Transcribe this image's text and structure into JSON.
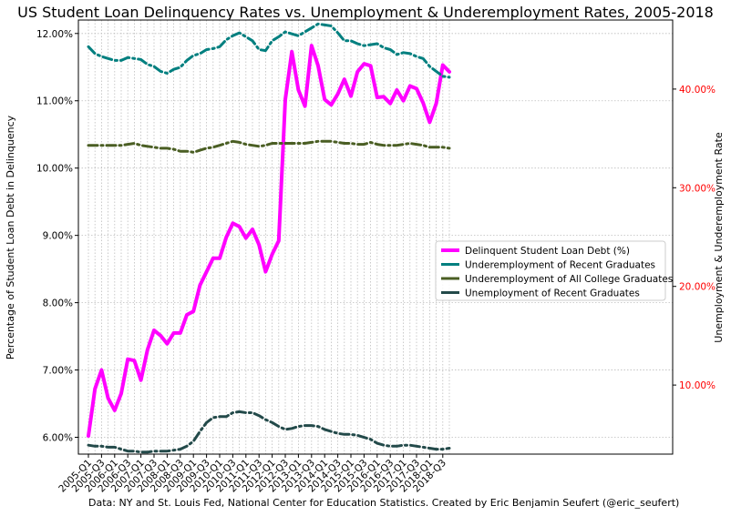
{
  "chart_data": {
    "type": "line",
    "title": "US Student Loan Delinquency Rates vs. Unemployment & Underemployment Rates, 2005-2018",
    "ylabel": "Percentage of Student Loan Debt in Delinquency",
    "y2label": "Unemployment & Underemployment Rate",
    "footer": "Data: NY and St. Louis Fed, National Center for Education Statistics. Created by Eric Benjamin Seufert (@eric_seufert)",
    "grid": true,
    "legend_position": "center-right",
    "ylim": [
      5.75,
      12.2
    ],
    "y2lim": [
      3.0,
      47.0
    ],
    "y_ticks": [
      "6.00%",
      "7.00%",
      "8.00%",
      "9.00%",
      "10.00%",
      "11.00%",
      "12.00%"
    ],
    "y_tick_values": [
      6,
      7,
      8,
      9,
      10,
      11,
      12
    ],
    "y2_ticks": [
      "10.00%",
      "20.00%",
      "30.00%",
      "40.00%"
    ],
    "y2_tick_values": [
      10,
      20,
      30,
      40
    ],
    "x_tick_labels": [
      "2005-Q1",
      "2005-Q3",
      "2006-Q1",
      "2006-Q3",
      "2007-Q1",
      "2007-Q3",
      "2008-Q1",
      "2008-Q3",
      "2009-Q1",
      "2009-Q3",
      "2010-Q1",
      "2010-Q3",
      "2011-Q1",
      "2011-Q3",
      "2012-Q1",
      "2012-Q3",
      "2013-Q1",
      "2013-Q3",
      "2014-Q1",
      "2014-Q3",
      "2015-Q1",
      "2015-Q3",
      "2016-Q1",
      "2016-Q3",
      "2017-Q1",
      "2017-Q3",
      "2018-Q1",
      "2018-Q3"
    ],
    "categories": [
      "2005-Q1",
      "2005-Q2",
      "2005-Q3",
      "2005-Q4",
      "2006-Q1",
      "2006-Q2",
      "2006-Q3",
      "2006-Q4",
      "2007-Q1",
      "2007-Q2",
      "2007-Q3",
      "2007-Q4",
      "2008-Q1",
      "2008-Q2",
      "2008-Q3",
      "2008-Q4",
      "2009-Q1",
      "2009-Q2",
      "2009-Q3",
      "2009-Q4",
      "2010-Q1",
      "2010-Q2",
      "2010-Q3",
      "2010-Q4",
      "2011-Q1",
      "2011-Q2",
      "2011-Q3",
      "2011-Q4",
      "2012-Q1",
      "2012-Q2",
      "2012-Q3",
      "2012-Q4",
      "2013-Q1",
      "2013-Q2",
      "2013-Q3",
      "2013-Q4",
      "2014-Q1",
      "2014-Q2",
      "2014-Q3",
      "2014-Q4",
      "2015-Q1",
      "2015-Q2",
      "2015-Q3",
      "2015-Q4",
      "2016-Q1",
      "2016-Q2",
      "2016-Q3",
      "2016-Q4",
      "2017-Q1",
      "2017-Q2",
      "2017-Q3",
      "2017-Q4",
      "2018-Q1",
      "2018-Q2",
      "2018-Q3",
      "2018-Q4"
    ],
    "series": [
      {
        "name": "Delinquent Student Loan Debt (%)",
        "axis": "left",
        "color": "#ff00ff",
        "style": "solid",
        "values": [
          6.02,
          6.72,
          7.0,
          6.58,
          6.4,
          6.65,
          7.16,
          7.14,
          6.85,
          7.3,
          7.59,
          7.51,
          7.39,
          7.55,
          7.55,
          7.82,
          7.87,
          8.26,
          8.46,
          8.66,
          8.66,
          8.97,
          9.18,
          9.13,
          8.96,
          9.09,
          8.86,
          8.46,
          8.72,
          8.92,
          11.02,
          11.73,
          11.16,
          10.92,
          11.82,
          11.52,
          11.02,
          10.94,
          11.1,
          11.32,
          11.07,
          11.43,
          11.55,
          11.52,
          11.05,
          11.06,
          10.96,
          11.16,
          11.0,
          11.22,
          11.18,
          10.97,
          10.68,
          10.96,
          11.53,
          11.43
        ]
      },
      {
        "name": "Underemployment of Recent Graduates",
        "axis": "right",
        "color": "#007f7f",
        "style": "dashdot",
        "values": [
          44.3,
          43.6,
          43.3,
          43.1,
          42.9,
          42.9,
          43.2,
          43.1,
          43.0,
          42.5,
          42.3,
          41.8,
          41.6,
          42.0,
          42.2,
          42.9,
          43.4,
          43.6,
          44.0,
          44.1,
          44.3,
          45.0,
          45.4,
          45.7,
          45.3,
          44.9,
          44.0,
          43.9,
          44.9,
          45.3,
          45.8,
          45.6,
          45.4,
          45.8,
          46.2,
          46.6,
          46.5,
          46.4,
          45.7,
          44.9,
          44.9,
          44.6,
          44.4,
          44.5,
          44.6,
          44.2,
          44.0,
          43.5,
          43.7,
          43.6,
          43.3,
          43.1,
          42.3,
          41.8,
          41.3,
          41.2
        ]
      },
      {
        "name": "Underemployment of All College Graduates",
        "axis": "right",
        "color": "#4a5e23",
        "style": "dashdot",
        "values": [
          34.3,
          34.3,
          34.3,
          34.3,
          34.3,
          34.3,
          34.4,
          34.5,
          34.3,
          34.2,
          34.1,
          34.0,
          34.0,
          33.9,
          33.7,
          33.7,
          33.6,
          33.8,
          34.0,
          34.1,
          34.3,
          34.5,
          34.7,
          34.6,
          34.4,
          34.3,
          34.2,
          34.3,
          34.5,
          34.5,
          34.5,
          34.5,
          34.5,
          34.5,
          34.6,
          34.7,
          34.7,
          34.7,
          34.6,
          34.5,
          34.5,
          34.4,
          34.4,
          34.6,
          34.4,
          34.3,
          34.3,
          34.3,
          34.4,
          34.5,
          34.4,
          34.3,
          34.1,
          34.1,
          34.1,
          34.0
        ]
      },
      {
        "name": "Unemployment of Recent Graduates",
        "axis": "right",
        "color": "#234a4a",
        "style": "dashdot",
        "values": [
          3.9,
          3.8,
          3.8,
          3.7,
          3.7,
          3.5,
          3.3,
          3.3,
          3.2,
          3.2,
          3.3,
          3.3,
          3.3,
          3.4,
          3.5,
          3.8,
          4.3,
          5.3,
          6.2,
          6.7,
          6.8,
          6.8,
          7.2,
          7.3,
          7.2,
          7.2,
          6.9,
          6.5,
          6.2,
          5.8,
          5.5,
          5.6,
          5.8,
          5.9,
          5.9,
          5.8,
          5.5,
          5.3,
          5.1,
          5.0,
          5.0,
          4.9,
          4.7,
          4.5,
          4.1,
          3.9,
          3.8,
          3.8,
          3.9,
          3.9,
          3.8,
          3.7,
          3.6,
          3.5,
          3.5,
          3.6
        ]
      }
    ]
  }
}
